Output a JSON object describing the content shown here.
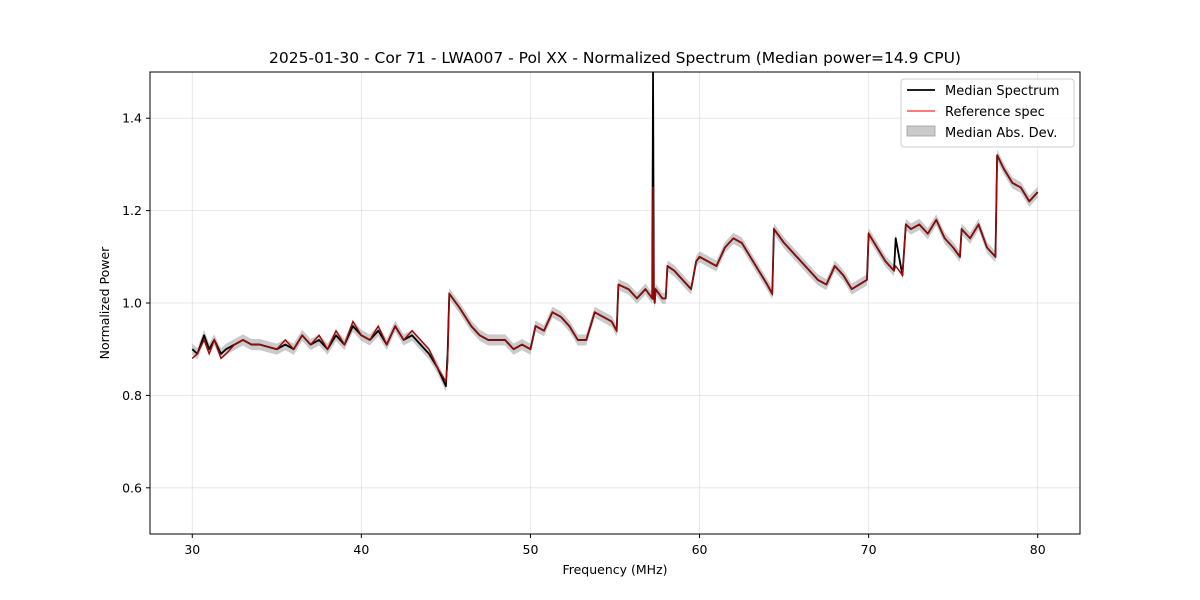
{
  "chart_data": {
    "type": "line",
    "title": "2025-01-30 - Cor 71 - LWA007 - Pol XX - Normalized Spectrum (Median power=14.9 CPU)",
    "xlabel": "Frequency (MHz)",
    "ylabel": "Normalized Power",
    "xlim": [
      27.5,
      82.5
    ],
    "ylim": [
      0.5,
      1.5
    ],
    "xticks": [
      30,
      40,
      50,
      60,
      70,
      80
    ],
    "yticks": [
      0.6,
      0.8,
      1.0,
      1.2,
      1.4
    ],
    "grid": true,
    "legend_position": "top-right",
    "legend": [
      "Median Spectrum",
      "Reference spec",
      "Median Abs. Dev."
    ],
    "series": [
      {
        "name": "Median Spectrum",
        "color": "#000000",
        "x": [
          30.0,
          30.3,
          30.7,
          31.0,
          31.3,
          31.7,
          32.0,
          32.5,
          33.0,
          33.5,
          34.0,
          35.0,
          35.5,
          36.0,
          36.5,
          37.0,
          37.5,
          38.0,
          38.5,
          39.0,
          39.5,
          40.0,
          40.5,
          41.0,
          41.5,
          42.0,
          42.5,
          43.0,
          43.5,
          44.0,
          44.5,
          45.0,
          45.1,
          45.2,
          45.8,
          46.5,
          47.0,
          47.5,
          48.0,
          48.5,
          49.0,
          49.5,
          50.0,
          50.3,
          50.8,
          51.3,
          51.8,
          52.3,
          52.8,
          53.3,
          53.8,
          54.3,
          54.8,
          55.1,
          55.2,
          55.8,
          56.3,
          56.8,
          57.2,
          57.25,
          57.3,
          57.35,
          57.4,
          57.8,
          58.0,
          58.1,
          58.5,
          59.0,
          59.5,
          59.8,
          60.0,
          60.5,
          61.0,
          61.5,
          62.0,
          62.5,
          63.0,
          63.5,
          64.0,
          64.3,
          64.4,
          65.0,
          66.0,
          67.0,
          67.5,
          68.0,
          68.5,
          69.0,
          69.9,
          70.0,
          70.5,
          71.0,
          71.5,
          71.6,
          72.0,
          72.2,
          72.5,
          73.0,
          73.5,
          74.0,
          74.5,
          75.0,
          75.4,
          75.5,
          76.0,
          76.5,
          77.0,
          77.5,
          77.6,
          78.0,
          78.5,
          79.0,
          79.5,
          80.0
        ],
        "values": [
          0.9,
          0.89,
          0.93,
          0.9,
          0.92,
          0.89,
          0.9,
          0.91,
          0.92,
          0.91,
          0.91,
          0.9,
          0.91,
          0.9,
          0.93,
          0.91,
          0.92,
          0.9,
          0.93,
          0.91,
          0.95,
          0.93,
          0.92,
          0.94,
          0.91,
          0.95,
          0.92,
          0.93,
          0.91,
          0.89,
          0.86,
          0.82,
          0.89,
          1.02,
          0.99,
          0.95,
          0.93,
          0.92,
          0.92,
          0.92,
          0.9,
          0.91,
          0.9,
          0.95,
          0.94,
          0.98,
          0.97,
          0.95,
          0.92,
          0.92,
          0.98,
          0.97,
          0.96,
          0.94,
          1.04,
          1.03,
          1.01,
          1.03,
          1.01,
          1.5,
          1.01,
          1.0,
          1.03,
          1.01,
          1.01,
          1.08,
          1.07,
          1.05,
          1.03,
          1.09,
          1.1,
          1.09,
          1.08,
          1.12,
          1.14,
          1.13,
          1.1,
          1.07,
          1.04,
          1.02,
          1.16,
          1.13,
          1.09,
          1.05,
          1.04,
          1.08,
          1.06,
          1.03,
          1.05,
          1.15,
          1.12,
          1.09,
          1.07,
          1.14,
          1.06,
          1.17,
          1.16,
          1.17,
          1.15,
          1.18,
          1.14,
          1.12,
          1.1,
          1.16,
          1.14,
          1.17,
          1.12,
          1.1,
          1.32,
          1.29,
          1.26,
          1.25,
          1.22,
          1.24
        ],
        "band": 0.012
      },
      {
        "name": "Reference spec",
        "color": "#ff3333",
        "x": [
          30.0,
          30.3,
          30.7,
          31.0,
          31.3,
          31.7,
          32.0,
          32.5,
          33.0,
          33.5,
          34.0,
          35.0,
          35.5,
          36.0,
          36.5,
          37.0,
          37.5,
          38.0,
          38.5,
          39.0,
          39.5,
          40.0,
          40.5,
          41.0,
          41.5,
          42.0,
          42.5,
          43.0,
          43.5,
          44.0,
          44.5,
          45.0,
          45.1,
          45.2,
          45.8,
          46.5,
          47.0,
          47.5,
          48.0,
          48.5,
          49.0,
          49.5,
          50.0,
          50.3,
          50.8,
          51.3,
          51.8,
          52.3,
          52.8,
          53.3,
          53.8,
          54.3,
          54.8,
          55.1,
          55.2,
          55.8,
          56.3,
          56.8,
          57.2,
          57.25,
          57.3,
          57.35,
          57.4,
          57.8,
          58.0,
          58.1,
          58.5,
          59.0,
          59.5,
          59.8,
          60.0,
          60.5,
          61.0,
          61.5,
          62.0,
          62.5,
          63.0,
          63.5,
          64.0,
          64.3,
          64.4,
          65.0,
          66.0,
          67.0,
          67.5,
          68.0,
          68.5,
          69.0,
          69.9,
          70.0,
          70.5,
          71.0,
          71.5,
          71.6,
          72.0,
          72.2,
          72.5,
          73.0,
          73.5,
          74.0,
          74.5,
          75.0,
          75.4,
          75.5,
          76.0,
          76.5,
          77.0,
          77.5,
          77.6,
          78.0,
          78.5,
          79.0,
          79.5,
          80.0
        ],
        "values": [
          0.88,
          0.89,
          0.92,
          0.89,
          0.92,
          0.88,
          0.89,
          0.91,
          0.92,
          0.91,
          0.91,
          0.9,
          0.92,
          0.9,
          0.93,
          0.91,
          0.93,
          0.9,
          0.94,
          0.91,
          0.96,
          0.93,
          0.92,
          0.95,
          0.91,
          0.95,
          0.92,
          0.94,
          0.92,
          0.9,
          0.86,
          0.83,
          0.87,
          1.02,
          0.99,
          0.95,
          0.93,
          0.92,
          0.92,
          0.92,
          0.9,
          0.91,
          0.9,
          0.95,
          0.94,
          0.98,
          0.97,
          0.95,
          0.92,
          0.92,
          0.98,
          0.97,
          0.96,
          0.94,
          1.04,
          1.03,
          1.01,
          1.03,
          1.01,
          1.25,
          1.01,
          1.0,
          1.03,
          1.01,
          1.01,
          1.08,
          1.07,
          1.05,
          1.03,
          1.09,
          1.1,
          1.09,
          1.08,
          1.12,
          1.14,
          1.13,
          1.1,
          1.07,
          1.04,
          1.02,
          1.16,
          1.13,
          1.09,
          1.05,
          1.04,
          1.08,
          1.06,
          1.03,
          1.05,
          1.15,
          1.12,
          1.09,
          1.07,
          1.08,
          1.06,
          1.17,
          1.16,
          1.17,
          1.15,
          1.18,
          1.14,
          1.12,
          1.1,
          1.16,
          1.14,
          1.17,
          1.12,
          1.1,
          1.32,
          1.29,
          1.26,
          1.25,
          1.22,
          1.24
        ]
      }
    ]
  }
}
